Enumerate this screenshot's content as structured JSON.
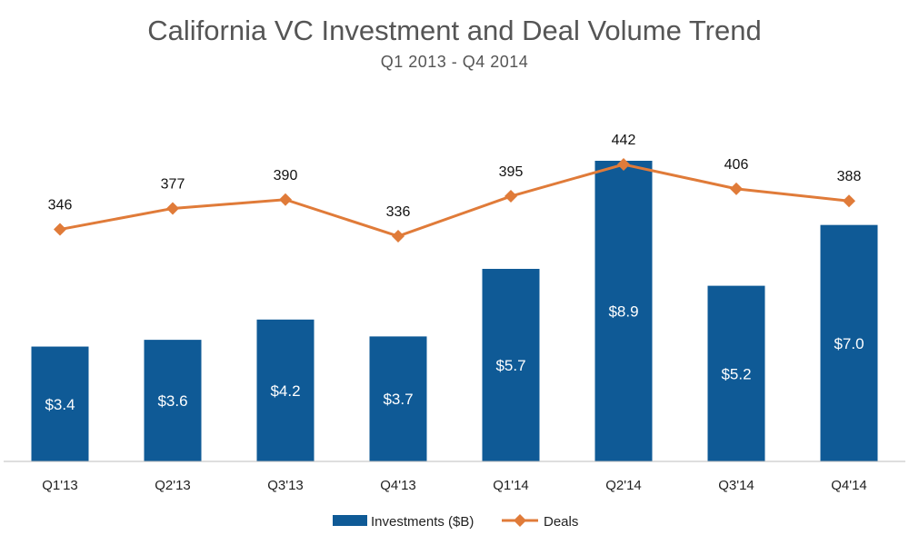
{
  "chart_data": {
    "type": "bar",
    "title": "California VC Investment and Deal Volume Trend",
    "subtitle": "Q1 2013 - Q4 2014",
    "categories": [
      "Q1'13",
      "Q2'13",
      "Q3'13",
      "Q4'13",
      "Q1'14",
      "Q2'14",
      "Q3'14",
      "Q4'14"
    ],
    "series": [
      {
        "name": "Investments ($B)",
        "type": "bar",
        "color": "#0f5a96",
        "values": [
          3.4,
          3.6,
          4.2,
          3.7,
          5.7,
          8.9,
          5.2,
          7.0
        ],
        "labels": [
          "$3.4",
          "$3.6",
          "$4.2",
          "$3.7",
          "$5.7",
          "$8.9",
          "$5.2",
          "$7.0"
        ]
      },
      {
        "name": "Deals",
        "type": "line",
        "color": "#e07b39",
        "marker": "diamond",
        "values": [
          346,
          377,
          390,
          336,
          395,
          442,
          406,
          388
        ],
        "labels": [
          "346",
          "377",
          "390",
          "336",
          "395",
          "442",
          "406",
          "388"
        ]
      }
    ],
    "legend": "bottom-center",
    "grid": false
  }
}
